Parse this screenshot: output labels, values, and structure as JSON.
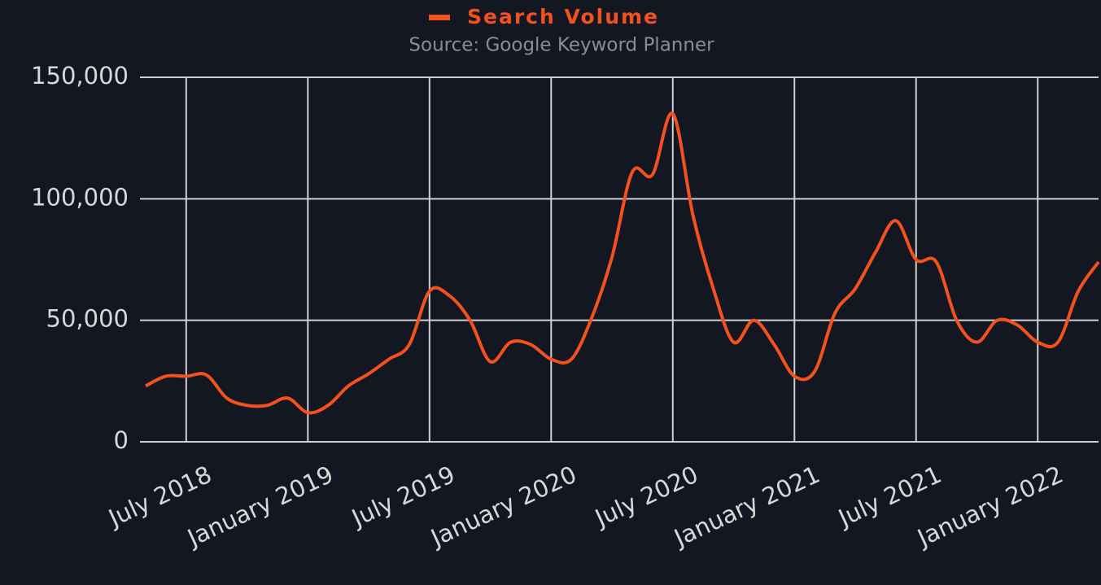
{
  "chart_data": {
    "type": "line",
    "title": "Source: Google Keyword Planner",
    "legend": "top",
    "grid": true,
    "x": [
      "2018-05",
      "2018-06",
      "2018-07",
      "2018-08",
      "2018-09",
      "2018-10",
      "2018-11",
      "2018-12",
      "2019-01",
      "2019-02",
      "2019-03",
      "2019-04",
      "2019-05",
      "2019-06",
      "2019-07",
      "2019-08",
      "2019-09",
      "2019-10",
      "2019-11",
      "2019-12",
      "2020-01",
      "2020-02",
      "2020-03",
      "2020-04",
      "2020-05",
      "2020-06",
      "2020-07",
      "2020-08",
      "2020-09",
      "2020-10",
      "2020-11",
      "2020-12",
      "2021-01",
      "2021-02",
      "2021-03",
      "2021-04",
      "2021-05",
      "2021-06",
      "2021-07",
      "2021-08",
      "2021-09",
      "2021-10",
      "2021-11",
      "2021-12",
      "2022-01",
      "2022-02",
      "2022-03",
      "2022-04"
    ],
    "series": [
      {
        "name": "Search Volume",
        "color": "#f4511e",
        "values": [
          23000,
          27000,
          27000,
          27500,
          18000,
          15000,
          15000,
          18000,
          12000,
          15000,
          23000,
          28000,
          34000,
          40000,
          62000,
          60000,
          50000,
          33000,
          41000,
          40000,
          34000,
          34000,
          51000,
          76000,
          111000,
          110000,
          135000,
          93000,
          63000,
          41000,
          50000,
          40000,
          27000,
          29000,
          53000,
          63000,
          78000,
          91000,
          75000,
          74000,
          50000,
          41000,
          50000,
          48000,
          41000,
          41000,
          62000,
          74000
        ]
      }
    ],
    "xlim": [
      "2018-05",
      "2022-04"
    ],
    "xticks": [
      {
        "value": "2018-07",
        "label": "July 2018"
      },
      {
        "value": "2019-01",
        "label": "January 2019"
      },
      {
        "value": "2019-07",
        "label": "July 2019"
      },
      {
        "value": "2020-01",
        "label": "January 2020"
      },
      {
        "value": "2020-07",
        "label": "July 2020"
      },
      {
        "value": "2021-01",
        "label": "January 2021"
      },
      {
        "value": "2021-07",
        "label": "July 2021"
      },
      {
        "value": "2022-01",
        "label": "January 2022"
      }
    ],
    "ylim": [
      0,
      150000
    ],
    "yticks": [
      0,
      {
        "value": 50000,
        "label": "50,000"
      },
      {
        "value": 100000,
        "label": "100,000"
      },
      {
        "value": 150000,
        "label": "150,000"
      }
    ]
  }
}
